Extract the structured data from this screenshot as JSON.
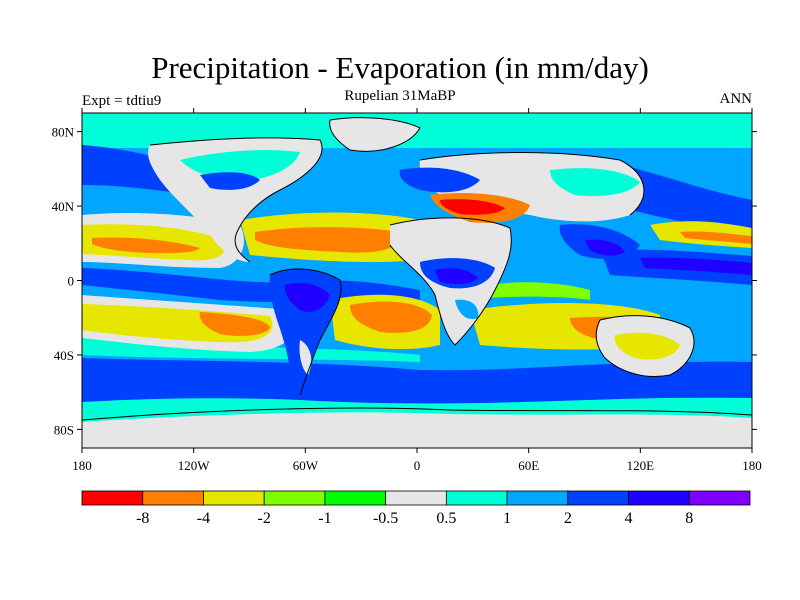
{
  "title": "Precipitation - Evaporation (in mm/day)",
  "subtitle": "Rupelian  31MaBP",
  "left_label": "Expt = tdtiu9",
  "right_label": "ANN",
  "map": {
    "lat_ticks": [
      "80N",
      "40N",
      "0",
      "40S",
      "80S"
    ],
    "lon_ticks": [
      "180",
      "120W",
      "60W",
      "0",
      "60E",
      "120E",
      "180"
    ]
  },
  "colorbar": {
    "colors": [
      "#ff0000",
      "#ff8000",
      "#e6e600",
      "#80ff00",
      "#00ff00",
      "#e6e6e6",
      "#00ffd9",
      "#00a6ff",
      "#0040ff",
      "#2000ff",
      "#8000ff"
    ],
    "labels": [
      "-8",
      "-4",
      "-2",
      "-1",
      "-0.5",
      "0.5",
      "1",
      "2",
      "4",
      "8"
    ]
  }
}
